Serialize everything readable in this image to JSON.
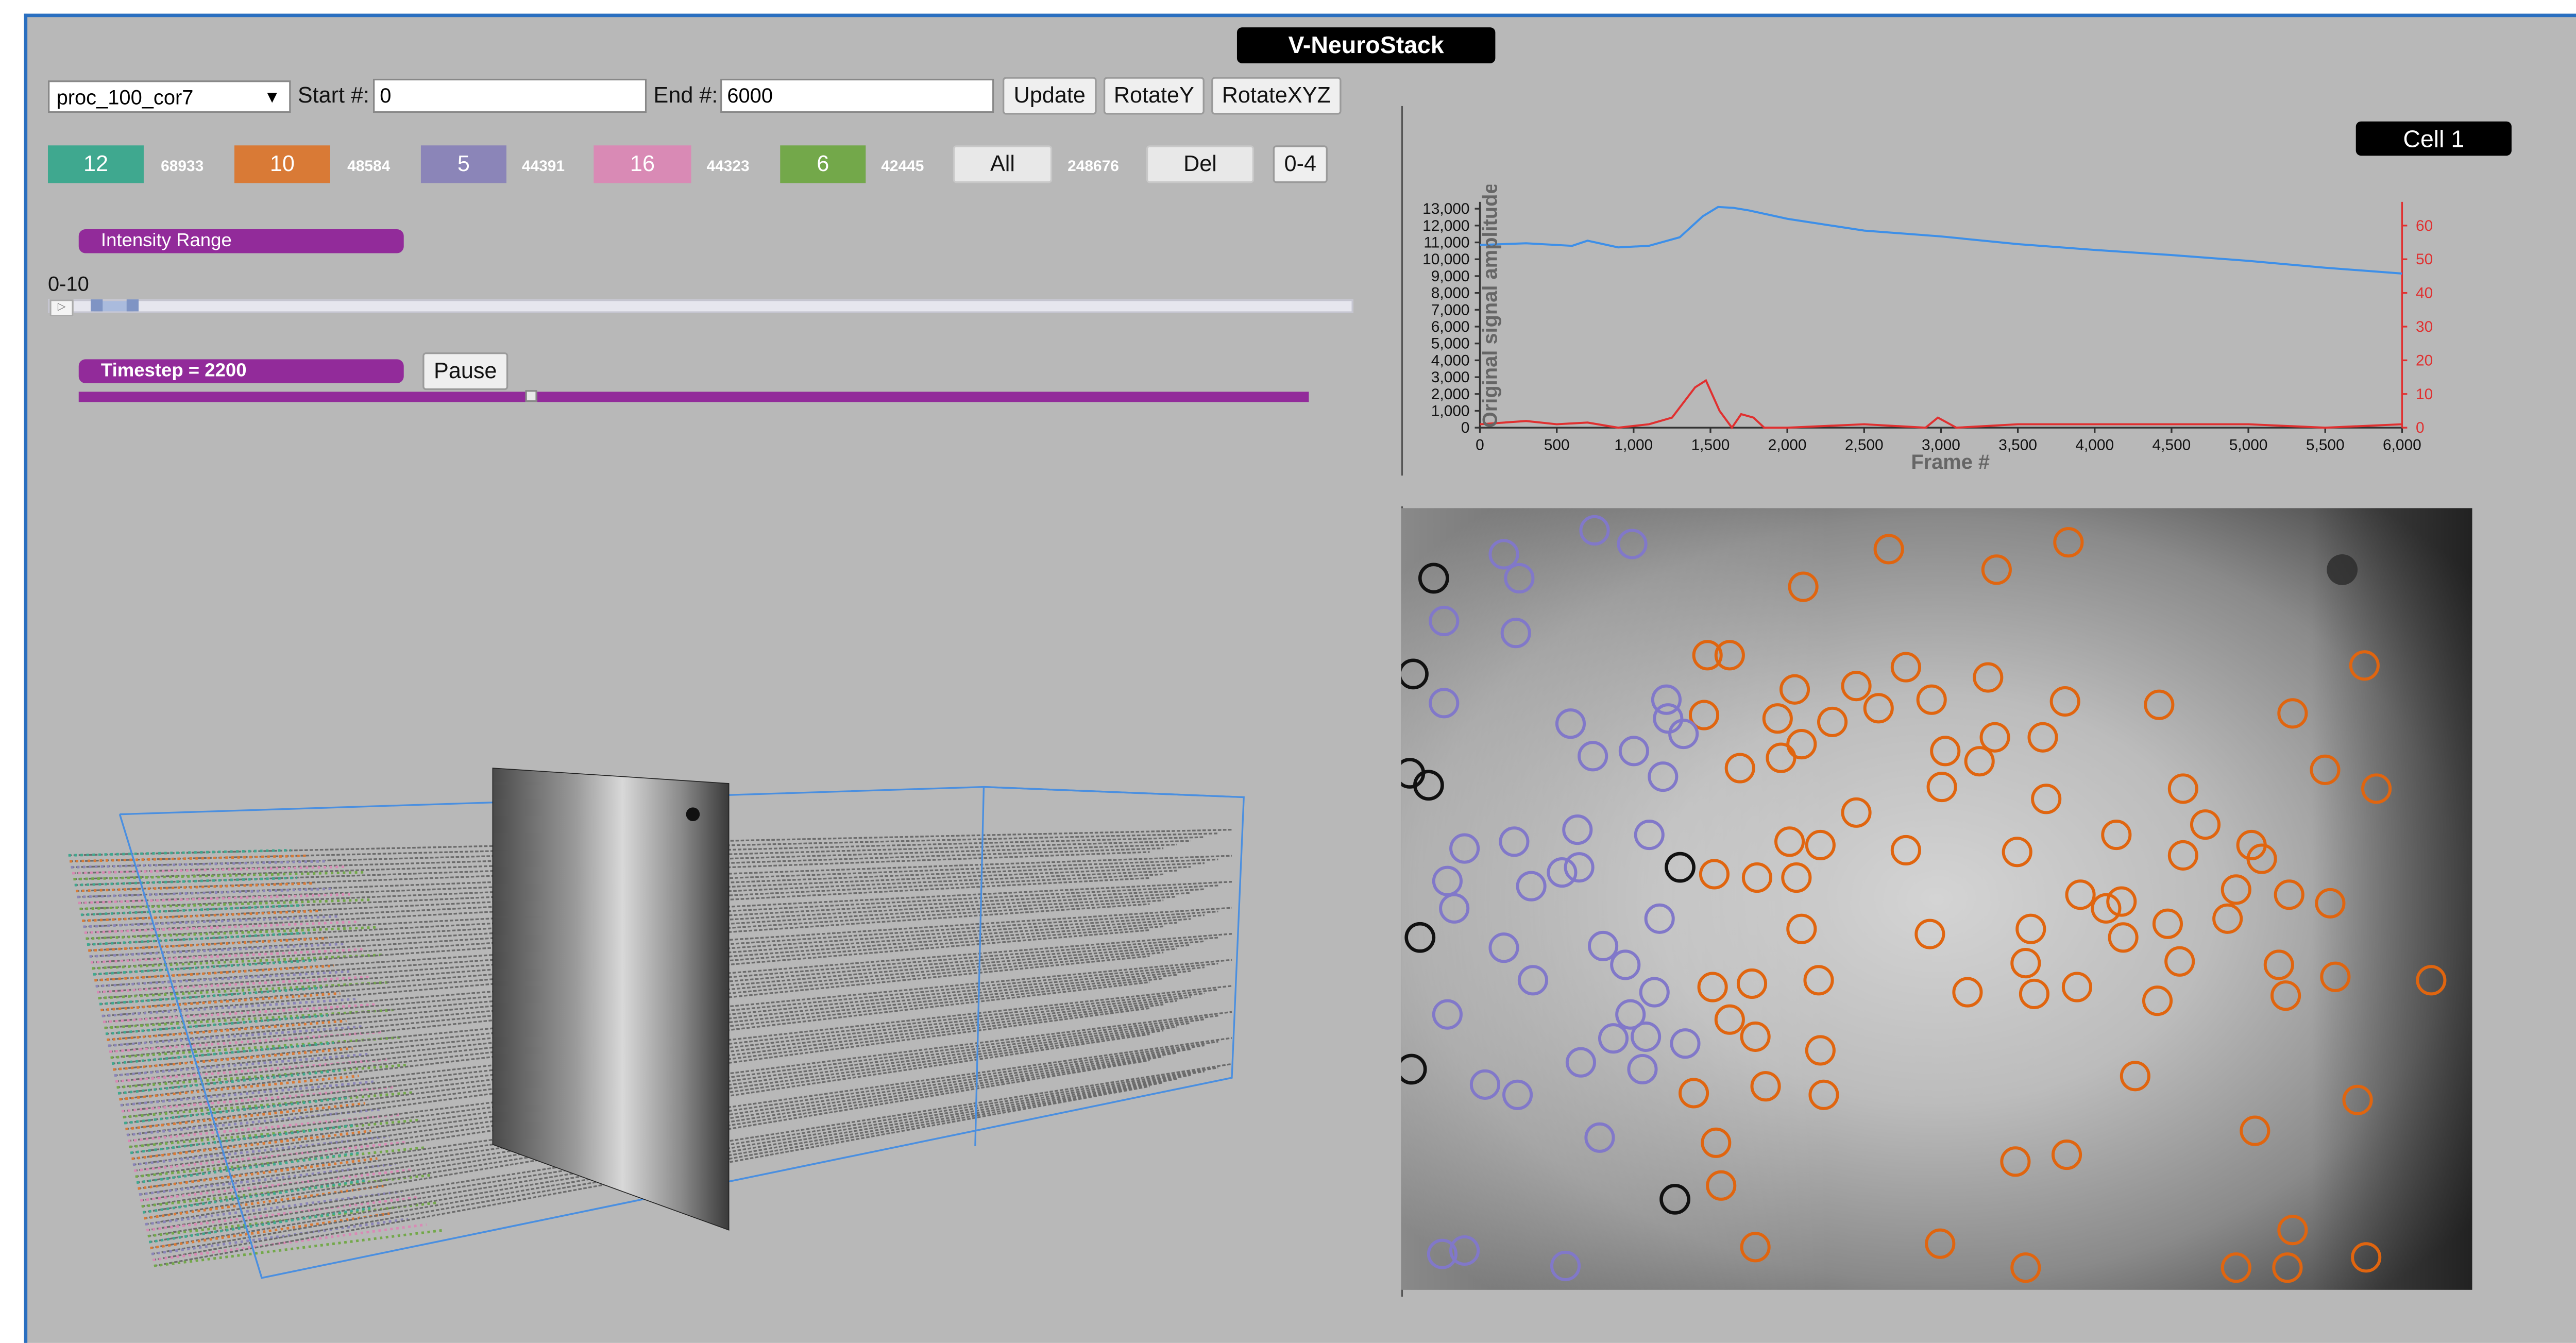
{
  "app": {
    "title": "V-NeuroStack"
  },
  "toolbar": {
    "dataset": "proc_100_cor7",
    "start_label": "Start #:",
    "start_value": "0",
    "end_label": "End #:",
    "end_value": "6000",
    "update": "Update",
    "rotate_y": "RotateY",
    "rotate_xyz": "RotateXYZ"
  },
  "clusters": [
    {
      "label": "12",
      "count": "68933",
      "color": "#3fa88f"
    },
    {
      "label": "10",
      "count": "48584",
      "color": "#d97a36"
    },
    {
      "label": "5",
      "count": "44391",
      "color": "#8b85b8"
    },
    {
      "label": "16",
      "count": "44323",
      "color": "#d98ab5"
    },
    {
      "label": "6",
      "count": "42445",
      "color": "#73a84a"
    }
  ],
  "cluster_actions": {
    "all": "All",
    "all_count": "248676",
    "del": "Del",
    "range": "0-4"
  },
  "intensity": {
    "label": "Intensity Range",
    "value": "0-10"
  },
  "timestep": {
    "label": "Timestep = 2200",
    "pause": "Pause",
    "fraction": 0.3667
  },
  "cell_panel": {
    "title": "Cell 1"
  },
  "chart_data": {
    "type": "line",
    "xlabel": "Frame #",
    "ylabel": "Original signal amplitude",
    "xlim": [
      0,
      6000
    ],
    "ylim_left": [
      0,
      13000
    ],
    "ylim_right": [
      0,
      65
    ],
    "x_ticks": [
      "0",
      "500",
      "1,000",
      "1,500",
      "2,000",
      "2,500",
      "3,000",
      "3,500",
      "4,000",
      "4,500",
      "5,000",
      "5,500",
      "6,000"
    ],
    "y_ticks_left": [
      "0",
      "1,000",
      "2,000",
      "3,000",
      "4,000",
      "5,000",
      "6,000",
      "7,000",
      "8,000",
      "9,000",
      "10,000",
      "11,000",
      "12,000",
      "13,000"
    ],
    "y_ticks_right": [
      "0",
      "10",
      "20",
      "30",
      "40",
      "50",
      "60"
    ],
    "series": [
      {
        "axis": "left",
        "color": "#3d8fe8",
        "x": [
          0,
          300,
          600,
          700,
          900,
          1100,
          1300,
          1450,
          1550,
          1650,
          1750,
          2000,
          2500,
          3000,
          3500,
          4000,
          4500,
          5000,
          5500,
          6000
        ],
        "values": [
          10850,
          10950,
          10800,
          11100,
          10700,
          10800,
          11300,
          12550,
          13100,
          13050,
          12900,
          12400,
          11700,
          11350,
          10900,
          10550,
          10250,
          9900,
          9500,
          9150
        ]
      },
      {
        "axis": "right",
        "color": "#e03030",
        "x": [
          0,
          300,
          500,
          700,
          900,
          1100,
          1250,
          1400,
          1470,
          1560,
          1640,
          1700,
          1780,
          1850,
          2000,
          2500,
          2900,
          2980,
          3100,
          3500,
          4000,
          4500,
          5000,
          5500,
          6000
        ],
        "values": [
          1,
          2,
          1,
          1.5,
          0,
          1,
          3,
          12,
          14,
          5,
          0,
          4,
          3,
          0,
          0,
          1,
          0,
          3,
          0,
          1,
          1,
          1,
          1,
          0,
          1
        ]
      }
    ]
  },
  "cell_map": {
    "colors": {
      "orange": "#e0650f",
      "purple": "#8178c9",
      "black": "#111111"
    },
    "orange": [
      [
        1104,
        321
      ],
      [
        1209,
        317
      ],
      [
        1167,
        333
      ],
      [
        1054,
        343
      ],
      [
        998,
        383
      ],
      [
        1011,
        383
      ],
      [
        1114,
        390
      ],
      [
        1162,
        396
      ],
      [
        1382,
        389
      ],
      [
        996,
        418
      ],
      [
        1049,
        403
      ],
      [
        1085,
        401
      ],
      [
        1098,
        414
      ],
      [
        1129,
        409
      ],
      [
        1207,
        410
      ],
      [
        1262,
        412
      ],
      [
        1340,
        417
      ],
      [
        1039,
        420
      ],
      [
        1071,
        422
      ],
      [
        1053,
        435
      ],
      [
        1041,
        443
      ],
      [
        1137,
        439
      ],
      [
        1157,
        445
      ],
      [
        1166,
        431
      ],
      [
        1194,
        431
      ],
      [
        1017,
        449
      ],
      [
        1359,
        450
      ],
      [
        1135,
        460
      ],
      [
        1085,
        475
      ],
      [
        1196,
        467
      ],
      [
        1276,
        461
      ],
      [
        1389,
        461
      ],
      [
        1289,
        482
      ],
      [
        1237,
        488
      ],
      [
        1046,
        492
      ],
      [
        1064,
        494
      ],
      [
        1114,
        497
      ],
      [
        1179,
        498
      ],
      [
        1276,
        500
      ],
      [
        1316,
        494
      ],
      [
        1322,
        502
      ],
      [
        1002,
        511
      ],
      [
        1027,
        513
      ],
      [
        1050,
        513
      ],
      [
        1216,
        523
      ],
      [
        1231,
        531
      ],
      [
        1240,
        527
      ],
      [
        1307,
        520
      ],
      [
        1338,
        523
      ],
      [
        1362,
        528
      ],
      [
        1053,
        543
      ],
      [
        1128,
        546
      ],
      [
        1187,
        543
      ],
      [
        1241,
        548
      ],
      [
        1267,
        540
      ],
      [
        1302,
        537
      ],
      [
        1184,
        563
      ],
      [
        1274,
        562
      ],
      [
        1332,
        564
      ],
      [
        1365,
        571
      ],
      [
        1001,
        577
      ],
      [
        1024,
        575
      ],
      [
        1063,
        573
      ],
      [
        1150,
        580
      ],
      [
        1189,
        581
      ],
      [
        1214,
        577
      ],
      [
        1261,
        585
      ],
      [
        1336,
        582
      ],
      [
        1421,
        573
      ],
      [
        1011,
        596
      ],
      [
        1026,
        606
      ],
      [
        1064,
        614
      ],
      [
        990,
        639
      ],
      [
        1032,
        635
      ],
      [
        1066,
        640
      ],
      [
        1248,
        629
      ],
      [
        1003,
        668
      ],
      [
        1318,
        661
      ],
      [
        1378,
        643
      ],
      [
        1178,
        679
      ],
      [
        1208,
        675
      ],
      [
        1006,
        693
      ],
      [
        1340,
        719
      ],
      [
        1026,
        729
      ],
      [
        1134,
        727
      ],
      [
        1184,
        741
      ],
      [
        1307,
        741
      ],
      [
        1337,
        741
      ],
      [
        1383,
        735
      ]
    ],
    "purple": [
      [
        879,
        324
      ],
      [
        888,
        338
      ],
      [
        932,
        310
      ],
      [
        954,
        318
      ],
      [
        844,
        363
      ],
      [
        886,
        370
      ],
      [
        844,
        411
      ],
      [
        974,
        409
      ],
      [
        918,
        423
      ],
      [
        975,
        420
      ],
      [
        984,
        429
      ],
      [
        931,
        442
      ],
      [
        955,
        439
      ],
      [
        972,
        454
      ],
      [
        856,
        496
      ],
      [
        885,
        492
      ],
      [
        922,
        485
      ],
      [
        964,
        488
      ],
      [
        846,
        515
      ],
      [
        850,
        531
      ],
      [
        895,
        518
      ],
      [
        913,
        510
      ],
      [
        923,
        507
      ],
      [
        879,
        554
      ],
      [
        937,
        553
      ],
      [
        970,
        537
      ],
      [
        896,
        573
      ],
      [
        950,
        564
      ],
      [
        967,
        580
      ],
      [
        846,
        593
      ],
      [
        953,
        593
      ],
      [
        943,
        607
      ],
      [
        962,
        606
      ],
      [
        985,
        610
      ],
      [
        924,
        621
      ],
      [
        960,
        625
      ],
      [
        868,
        634
      ],
      [
        887,
        640
      ],
      [
        935,
        665
      ],
      [
        843,
        733
      ],
      [
        856,
        731
      ],
      [
        915,
        740
      ]
    ],
    "black": [
      [
        838,
        338
      ],
      [
        826,
        394
      ],
      [
        824,
        452
      ],
      [
        835,
        459
      ],
      [
        982,
        507
      ],
      [
        830,
        548
      ],
      [
        825,
        625
      ],
      [
        979,
        701
      ]
    ]
  }
}
